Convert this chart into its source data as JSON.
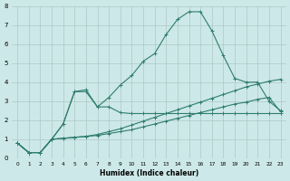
{
  "xlabel": "Humidex (Indice chaleur)",
  "xlim": [
    -0.5,
    23.5
  ],
  "ylim": [
    0,
    8
  ],
  "x_ticks": [
    0,
    1,
    2,
    3,
    4,
    5,
    6,
    7,
    8,
    9,
    10,
    11,
    12,
    13,
    14,
    15,
    16,
    17,
    18,
    19,
    20,
    21,
    22,
    23
  ],
  "y_ticks": [
    0,
    1,
    2,
    3,
    4,
    5,
    6,
    7,
    8
  ],
  "bg_color": "#cde8e8",
  "grid_color": "#aec8c8",
  "line_color": "#2e7d6e",
  "series_zigzag_x": [
    0,
    1,
    2,
    3,
    4,
    5,
    6,
    7,
    8,
    9,
    10,
    11,
    12,
    13,
    14,
    15,
    16,
    17,
    18,
    19,
    20,
    21,
    22,
    23
  ],
  "series_zigzag_y": [
    0.8,
    0.3,
    0.3,
    1.0,
    1.8,
    3.5,
    3.5,
    2.7,
    2.7,
    2.4,
    2.35,
    2.35,
    2.35,
    2.35,
    2.35,
    2.35,
    2.35,
    2.35,
    2.35,
    2.35,
    2.35,
    2.35,
    2.35,
    2.35
  ],
  "series_peak_x": [
    0,
    1,
    2,
    3,
    4,
    5,
    6,
    7,
    8,
    9,
    10,
    11,
    12,
    13,
    14,
    15,
    16,
    17,
    18,
    19,
    20,
    21,
    22,
    23
  ],
  "series_peak_y": [
    0.8,
    0.3,
    0.3,
    1.0,
    1.8,
    3.5,
    3.6,
    2.7,
    3.2,
    3.85,
    4.35,
    5.1,
    5.5,
    6.5,
    7.3,
    7.7,
    7.7,
    6.7,
    5.4,
    4.2,
    4.0,
    4.0,
    3.0,
    2.5
  ],
  "series_linear1_x": [
    0,
    1,
    2,
    3,
    4,
    5,
    6,
    7,
    8,
    9,
    10,
    11,
    12,
    13,
    14,
    15,
    16,
    17,
    18,
    19,
    20,
    21,
    22,
    23
  ],
  "series_linear1_y": [
    0.8,
    0.3,
    0.3,
    1.0,
    1.05,
    1.1,
    1.15,
    1.2,
    1.3,
    1.4,
    1.5,
    1.65,
    1.8,
    1.95,
    2.1,
    2.25,
    2.4,
    2.55,
    2.7,
    2.85,
    2.95,
    3.1,
    3.2,
    2.45
  ],
  "series_linear2_x": [
    0,
    1,
    2,
    3,
    4,
    5,
    6,
    7,
    8,
    9,
    10,
    11,
    12,
    13,
    14,
    15,
    16,
    17,
    18,
    19,
    20,
    21,
    22,
    23
  ],
  "series_linear2_y": [
    0.8,
    0.3,
    0.3,
    1.0,
    1.05,
    1.1,
    1.15,
    1.25,
    1.4,
    1.55,
    1.75,
    1.95,
    2.15,
    2.35,
    2.55,
    2.75,
    2.95,
    3.15,
    3.35,
    3.55,
    3.75,
    3.9,
    4.05,
    4.15
  ]
}
